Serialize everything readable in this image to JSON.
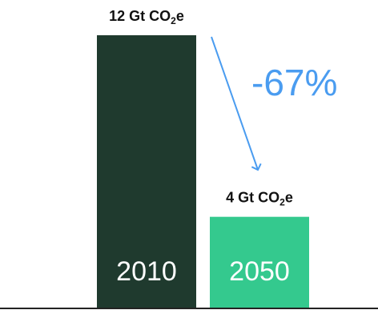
{
  "chart_data": {
    "type": "bar",
    "categories": [
      "2010",
      "2050"
    ],
    "values": [
      12,
      4
    ],
    "unit": "Gt CO₂e",
    "value_labels": [
      {
        "prefix": "12 Gt CO",
        "sub": "2",
        "suffix": "e"
      },
      {
        "prefix": "4 Gt CO",
        "sub": "2",
        "suffix": "e"
      }
    ],
    "bar_colors": [
      "#1f3a2e",
      "#34c98e"
    ],
    "annotation": {
      "text": "-67%",
      "color": "#4a9cf0"
    },
    "ylim": [
      0,
      12
    ],
    "grid": false,
    "legend": "none"
  }
}
